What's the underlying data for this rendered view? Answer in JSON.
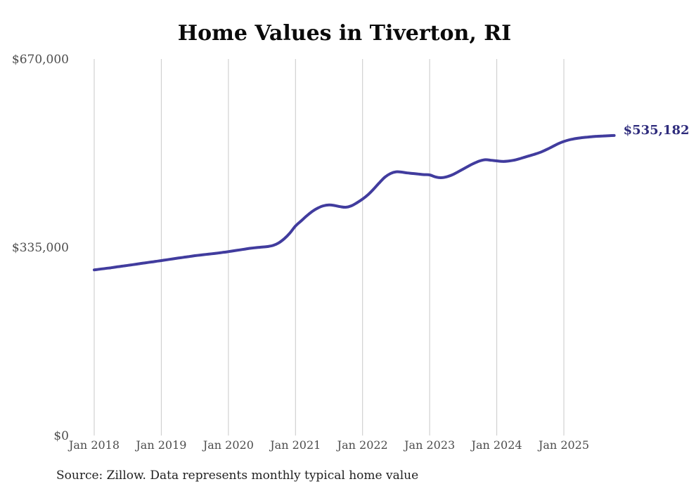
{
  "title": "Home Values in Tiverton, RI",
  "source_note": "Source: Zillow. Data represents monthly typical home value",
  "colors": {
    "line": "#413c9e",
    "final_label": "#2e2b7c",
    "gridline": "#c9c9c9",
    "tick_text": "#4d4d4d",
    "title_text": "#0a0a0a",
    "source_text": "#222222"
  },
  "chart_data": {
    "type": "line",
    "title": "Home Values in Tiverton, RI",
    "xlabel": "",
    "ylabel": "",
    "grid": "vertical-only",
    "legend_position": "none",
    "ylim": [
      0,
      670000
    ],
    "y_ticks": [
      {
        "label": "$0",
        "value": 0
      },
      {
        "label": "$335,000",
        "value": 335000
      },
      {
        "label": "$670,000",
        "value": 670000
      }
    ],
    "x_tick_labels": [
      "Jan 2018",
      "Jan 2019",
      "Jan 2020",
      "Jan 2021",
      "Jan 2022",
      "Jan 2023",
      "Jan 2024",
      "Jan 2025"
    ],
    "months_start": "Jan 2018",
    "months_end": "Oct 2025",
    "final_value": 535182,
    "final_value_label": "$535,182",
    "series": [
      {
        "name": "Monthly typical home value",
        "values": [
          296000,
          297200,
          298500,
          299800,
          301200,
          302600,
          304000,
          305400,
          306900,
          308300,
          309700,
          311100,
          312500,
          314000,
          315500,
          317000,
          318400,
          319800,
          321200,
          322400,
          323500,
          324600,
          325800,
          327100,
          328500,
          330000,
          331500,
          333000,
          334500,
          335600,
          336500,
          337500,
          339500,
          344000,
          351500,
          361500,
          374000,
          383000,
          392000,
          400000,
          406000,
          410000,
          411500,
          410500,
          408500,
          407500,
          410000,
          415500,
          422000,
          430000,
          440000,
          451000,
          461000,
          467500,
          470500,
          470000,
          468500,
          467500,
          466500,
          465500,
          465000,
          461500,
          460000,
          461500,
          465000,
          470000,
          475500,
          481000,
          486000,
          490000,
          492000,
          491000,
          490000,
          489000,
          489500,
          491000,
          493500,
          496500,
          499500,
          502500,
          506000,
          510500,
          515500,
          520500,
          524500,
          527500,
          529500,
          531000,
          532000,
          533000,
          533800,
          534300,
          534800,
          535182
        ]
      }
    ]
  }
}
